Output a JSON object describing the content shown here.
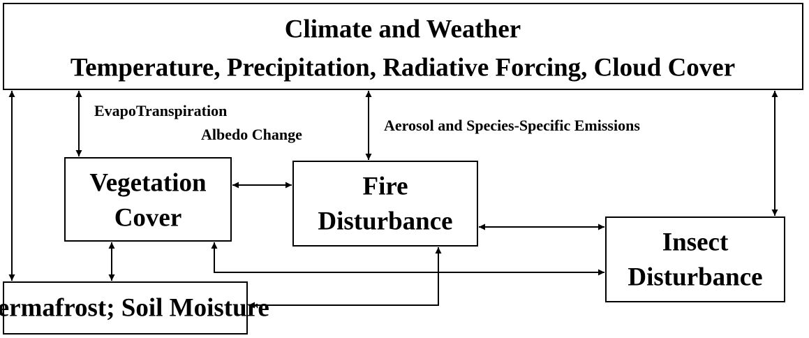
{
  "nodes": [
    {
      "id": "climate",
      "lines": [
        "Climate and Weather",
        "Temperature, Precipitation, Radiative Forcing, Cloud Cover"
      ]
    },
    {
      "id": "vegetation",
      "lines": [
        "Vegetation",
        "Cover"
      ]
    },
    {
      "id": "fire",
      "lines": [
        "Fire",
        "Disturbance"
      ]
    },
    {
      "id": "insect",
      "lines": [
        "Insect",
        "Disturbance"
      ]
    },
    {
      "id": "permafrost",
      "lines": [
        "Permafrost; Soil Moisture"
      ]
    }
  ],
  "edge_labels": [
    "EvapoTranspiration",
    "Albedo Change",
    "Aerosol and Species-Specific Emissions"
  ]
}
